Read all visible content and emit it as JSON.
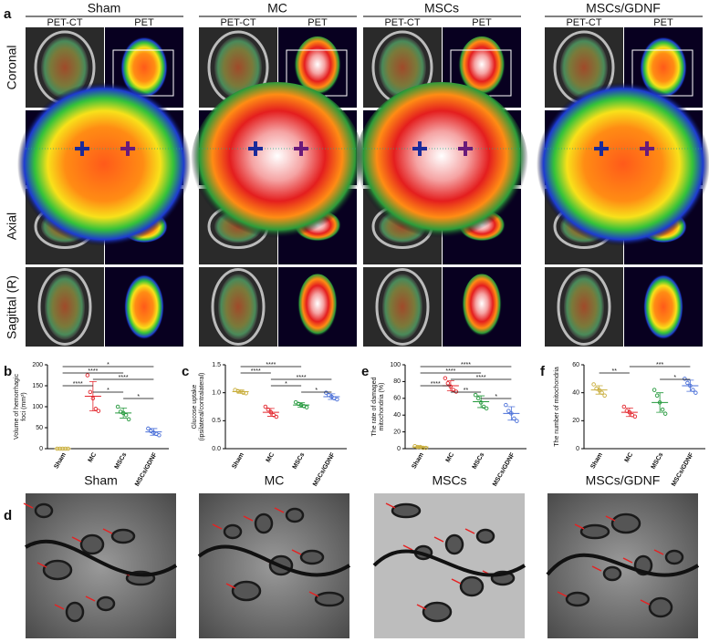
{
  "figure_a": {
    "label": "a",
    "groups": [
      "Sham",
      "MC",
      "MSCs",
      "MSCs/GDNF"
    ],
    "modalities": [
      "PET-CT",
      "PET"
    ],
    "views": [
      "Coronal",
      "Axial",
      "Sagittal (R)"
    ]
  },
  "chart_data": [
    {
      "type": "dotplot",
      "label": "b",
      "ylabel": [
        "Volume of hemorrhagic",
        "foci (mm³)"
      ],
      "categories": [
        "Sham",
        "MC",
        "MSCs",
        "MSCs/GDNF"
      ],
      "colors": [
        "#c8ad3a",
        "#e3262d",
        "#23983b",
        "#4a6fd8"
      ],
      "values": [
        0,
        125,
        85,
        40
      ],
      "errors": [
        0,
        35,
        12,
        8
      ],
      "points": [
        [
          0,
          0,
          0,
          0,
          0
        ],
        [
          175,
          135,
          120,
          95,
          90
        ],
        [
          100,
          88,
          85,
          80,
          70
        ],
        [
          48,
          42,
          38,
          35,
          32
        ]
      ],
      "ylim": [
        0,
        200
      ],
      "yticks": [
        0,
        50,
        100,
        150,
        200
      ],
      "comparisons": [
        {
          "pair": [
            0,
            3
          ],
          "label": "*"
        },
        {
          "pair": [
            0,
            2
          ],
          "label": "****"
        },
        {
          "pair": [
            1,
            3
          ],
          "label": "****"
        },
        {
          "pair": [
            0,
            1
          ],
          "label": "****"
        },
        {
          "pair": [
            1,
            2
          ],
          "label": "*"
        },
        {
          "pair": [
            2,
            3
          ],
          "label": "*"
        }
      ]
    },
    {
      "type": "dotplot",
      "label": "c",
      "ylabel": [
        "Glucose uptake",
        "(ipsilateral/contralateral)"
      ],
      "categories": [
        "Sham",
        "MC",
        "MSCs",
        "MSCs/GDNF"
      ],
      "colors": [
        "#c8ad3a",
        "#e3262d",
        "#23983b",
        "#4a6fd8"
      ],
      "values": [
        1.02,
        0.65,
        0.78,
        0.93
      ],
      "errors": [
        0.03,
        0.07,
        0.04,
        0.05
      ],
      "points": [
        [
          1.05,
          1.03,
          1.02,
          1.0,
          0.99
        ],
        [
          0.75,
          0.7,
          0.65,
          0.6,
          0.57
        ],
        [
          0.83,
          0.8,
          0.78,
          0.76,
          0.74
        ],
        [
          1.0,
          0.96,
          0.93,
          0.9,
          0.88
        ]
      ],
      "ylim": [
        0,
        1.5
      ],
      "yticks": [
        {
          "value": 0,
          "label": "0.0"
        },
        {
          "value": 0.5,
          "label": "0.5"
        },
        {
          "value": 1,
          "label": "1.0"
        },
        {
          "value": 1.5,
          "label": "1.5"
        }
      ],
      "comparisons": [
        {
          "pair": [
            0,
            2
          ],
          "label": "****"
        },
        {
          "pair": [
            0,
            1
          ],
          "label": "****"
        },
        {
          "pair": [
            1,
            3
          ],
          "label": "****"
        },
        {
          "pair": [
            1,
            2
          ],
          "label": "*"
        },
        {
          "pair": [
            2,
            3
          ],
          "label": "*"
        }
      ]
    },
    {
      "type": "dotplot",
      "label": "e",
      "ylabel": [
        "The rate of damaged",
        "mitochondria (%)"
      ],
      "categories": [
        "Sham",
        "MC",
        "MSCs",
        "MSCs/GDNF"
      ],
      "colors": [
        "#c8ad3a",
        "#e3262d",
        "#23983b",
        "#4a6fd8"
      ],
      "values": [
        2,
        75,
        56,
        42
      ],
      "errors": [
        1,
        6,
        7,
        8
      ],
      "points": [
        [
          3,
          2,
          2,
          1,
          1
        ],
        [
          84,
          78,
          74,
          70,
          68
        ],
        [
          64,
          60,
          55,
          50,
          48
        ],
        [
          52,
          45,
          42,
          36,
          33
        ]
      ],
      "ylim": [
        0,
        100
      ],
      "yticks": [
        0,
        20,
        40,
        60,
        80,
        100
      ],
      "comparisons": [
        {
          "pair": [
            0,
            3
          ],
          "label": "****"
        },
        {
          "pair": [
            0,
            2
          ],
          "label": "****"
        },
        {
          "pair": [
            1,
            3
          ],
          "label": "****"
        },
        {
          "pair": [
            0,
            1
          ],
          "label": "****"
        },
        {
          "pair": [
            1,
            2
          ],
          "label": "**"
        },
        {
          "pair": [
            2,
            3
          ],
          "label": "*"
        }
      ]
    },
    {
      "type": "dotplot",
      "label": "f",
      "ylabel": [
        "The number of mitochondria"
      ],
      "categories": [
        "Sham",
        "MC",
        "MSCs",
        "MSCs/GDNF"
      ],
      "colors": [
        "#c8ad3a",
        "#e3262d",
        "#23983b",
        "#4a6fd8"
      ],
      "values": [
        42,
        26,
        33,
        45
      ],
      "errors": [
        3,
        3,
        7,
        4
      ],
      "points": [
        [
          46,
          43,
          42,
          40,
          38
        ],
        [
          30,
          27,
          26,
          24,
          23
        ],
        [
          42,
          38,
          33,
          28,
          25
        ],
        [
          50,
          47,
          45,
          42,
          40
        ]
      ],
      "ylim": [
        0,
        60
      ],
      "yticks": [
        0,
        20,
        40,
        60
      ],
      "comparisons": [
        {
          "pair": [
            1,
            3
          ],
          "label": "***"
        },
        {
          "pair": [
            0,
            1
          ],
          "label": "**"
        },
        {
          "pair": [
            2,
            3
          ],
          "label": "*"
        }
      ]
    }
  ],
  "figure_d": {
    "label": "d",
    "groups": [
      "Sham",
      "MC",
      "MSCs",
      "MSCs/GDNF"
    ]
  }
}
